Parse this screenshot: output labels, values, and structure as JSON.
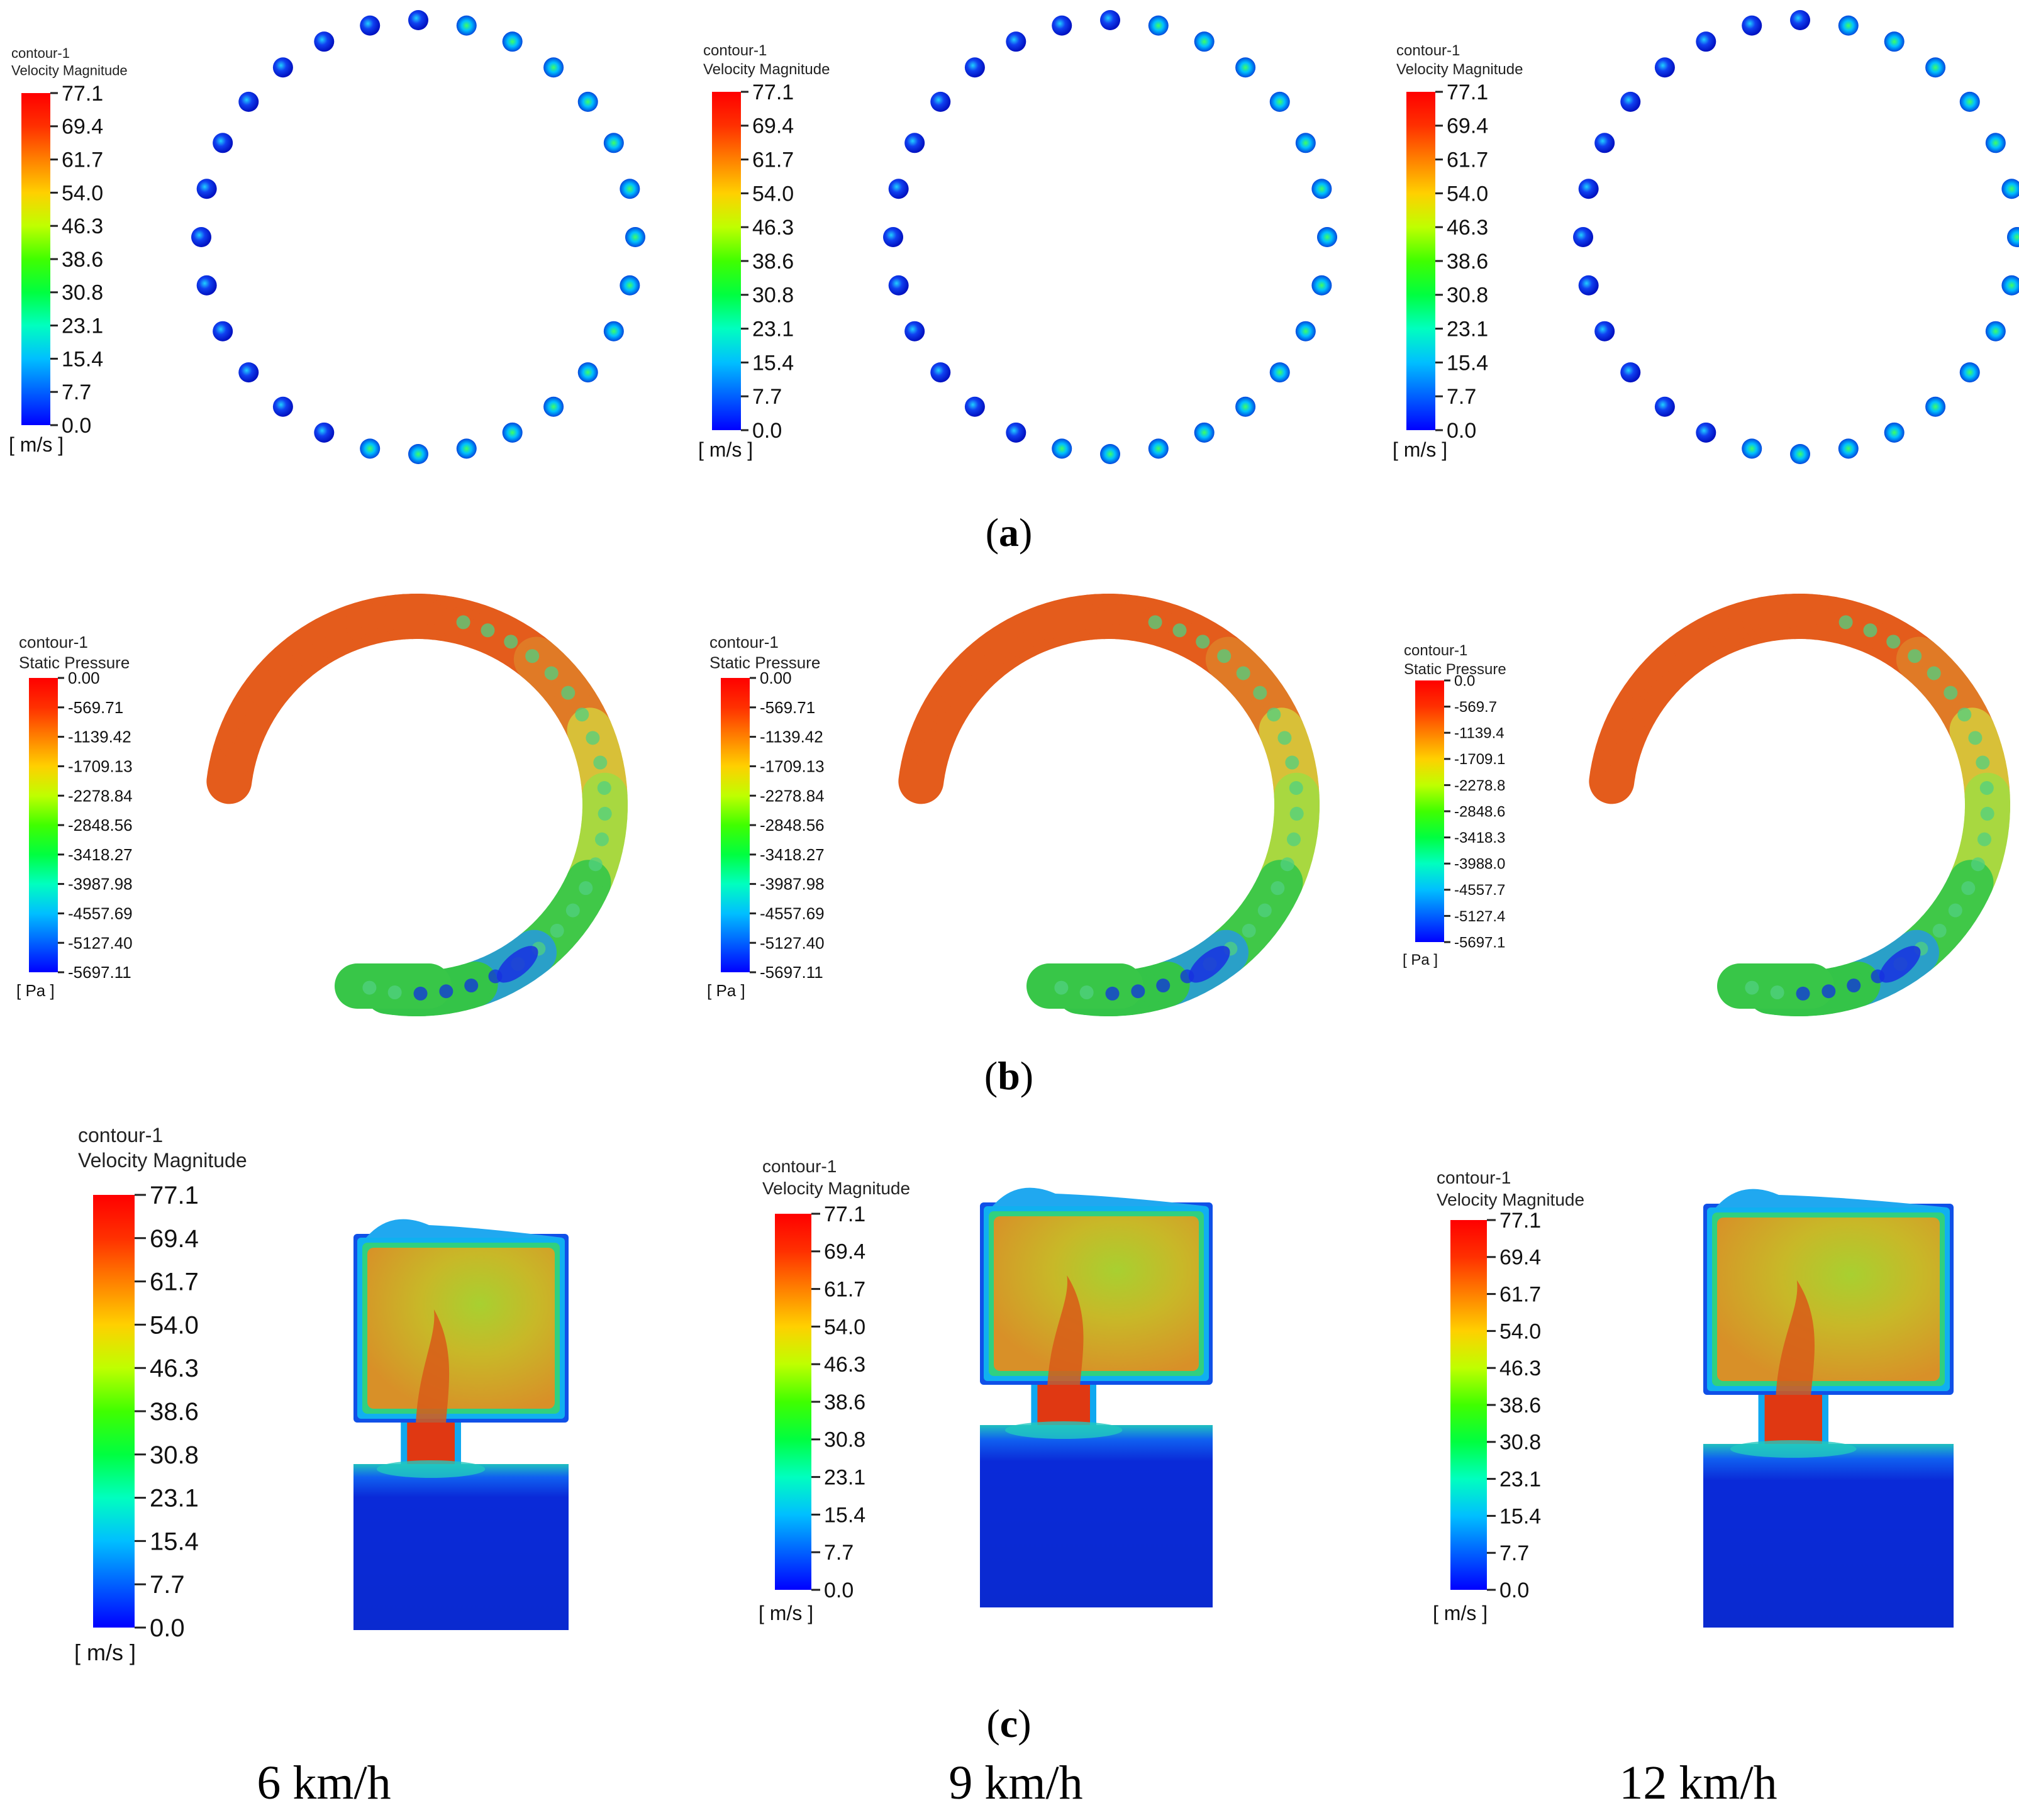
{
  "panels": {
    "a": {
      "label": "a",
      "legends": [
        {
          "name": "contour-1",
          "var": "Velocity Magnitude",
          "unit": "[ m/s ]",
          "ticks": [
            "77.1",
            "69.4",
            "61.7",
            "54.0",
            "46.3",
            "38.6",
            "30.8",
            "23.1",
            "15.4",
            "7.7",
            "0.0"
          ]
        },
        {
          "name": "contour-1",
          "var": "Velocity Magnitude",
          "unit": "[ m/s ]",
          "ticks": [
            "77.1",
            "69.4",
            "61.7",
            "54.0",
            "46.3",
            "38.6",
            "30.8",
            "23.1",
            "15.4",
            "7.7",
            "0.0"
          ]
        },
        {
          "name": "contour-1",
          "var": "Velocity Magnitude",
          "unit": "[ m/s ]",
          "ticks": [
            "77.1",
            "69.4",
            "61.7",
            "54.0",
            "46.3",
            "38.6",
            "30.8",
            "23.1",
            "15.4",
            "7.7",
            "0.0"
          ]
        }
      ]
    },
    "b": {
      "label": "b",
      "legends": [
        {
          "name": "contour-1",
          "var": "Static Pressure",
          "unit": "[ Pa ]",
          "ticks": [
            "0.00",
            "-569.71",
            "-1139.42",
            "-1709.13",
            "-2278.84",
            "-2848.56",
            "-3418.27",
            "-3987.98",
            "-4557.69",
            "-5127.40",
            "-5697.11"
          ]
        },
        {
          "name": "contour-1",
          "var": "Static Pressure",
          "unit": "[ Pa ]",
          "ticks": [
            "0.00",
            "-569.71",
            "-1139.42",
            "-1709.13",
            "-2278.84",
            "-2848.56",
            "-3418.27",
            "-3987.98",
            "-4557.69",
            "-5127.40",
            "-5697.11"
          ]
        },
        {
          "name": "contour-1",
          "var": "Static Pressure",
          "unit": "[ Pa ]",
          "ticks": [
            "0.0",
            "-569.7",
            "-1139.4",
            "-1709.1",
            "-2278.8",
            "-2848.6",
            "-3418.3",
            "-3988.0",
            "-4557.7",
            "-5127.4",
            "-5697.1"
          ]
        }
      ]
    },
    "c": {
      "label": "c",
      "legends": [
        {
          "name": "contour-1",
          "var": "Velocity Magnitude",
          "unit": "[ m/s ]",
          "ticks": [
            "77.1",
            "69.4",
            "61.7",
            "54.0",
            "46.3",
            "38.6",
            "30.8",
            "23.1",
            "15.4",
            "7.7",
            "0.0"
          ]
        },
        {
          "name": "contour-1",
          "var": "Velocity Magnitude",
          "unit": "[ m/s ]",
          "ticks": [
            "77.1",
            "69.4",
            "61.7",
            "54.0",
            "46.3",
            "38.6",
            "30.8",
            "23.1",
            "15.4",
            "7.7",
            "0.0"
          ]
        },
        {
          "name": "contour-1",
          "var": "Velocity Magnitude",
          "unit": "[ m/s ]",
          "ticks": [
            "77.1",
            "69.4",
            "61.7",
            "54.0",
            "46.3",
            "38.6",
            "30.8",
            "23.1",
            "15.4",
            "7.7",
            "0.0"
          ]
        }
      ]
    }
  },
  "speeds": [
    "6 km/h",
    "9 km/h",
    "12 km/h"
  ],
  "colors": {
    "cmap": [
      "#0000ff",
      "#0060ff",
      "#00bfff",
      "#00ffbf",
      "#00ff40",
      "#40ff00",
      "#bfff00",
      "#ffd000",
      "#ff8000",
      "#ff3000",
      "#ff0000"
    ],
    "dot_low": "#0a1ae0",
    "pressure_high": "#e85a18",
    "pressure_mid": "#d8d030",
    "pressure_low": "#30c040",
    "velocity_fill": "#c8a820",
    "velocity_core": "#e03010",
    "velocity_wall": "#10a0f0",
    "velocity_stagnant": "#0a2ad8"
  }
}
